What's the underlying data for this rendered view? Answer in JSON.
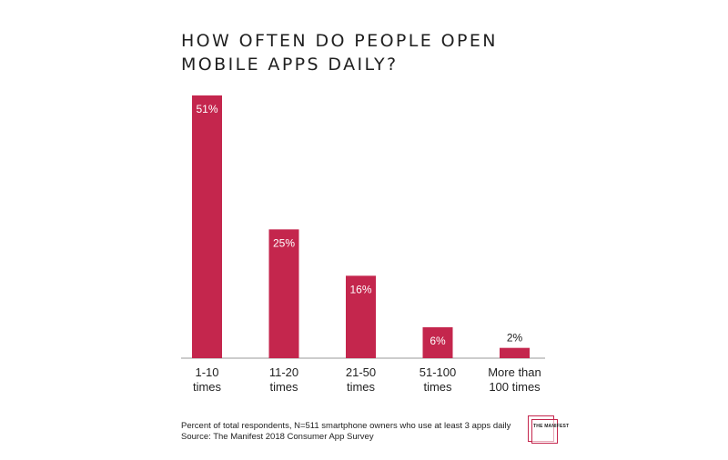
{
  "chart_data": {
    "type": "bar",
    "title": "HOW OFTEN DO PEOPLE OPEN MOBILE APPS DAILY?",
    "categories": [
      [
        "1-10",
        "times"
      ],
      [
        "11-20",
        "times"
      ],
      [
        "21-50",
        "times"
      ],
      [
        "51-100",
        "times"
      ],
      [
        "More than",
        "100 times"
      ]
    ],
    "values": [
      51,
      25,
      16,
      6,
      2
    ],
    "value_labels": [
      "51%",
      "25%",
      "16%",
      "6%",
      "2%"
    ],
    "unit": "%",
    "ylim": [
      0,
      51
    ],
    "grid": false,
    "bar_color": "#c4264d"
  },
  "footnote": {
    "line1": "Percent of total respondents, N=511 smartphone owners who use at least 3 apps daily",
    "line2": "Source: The Manifest 2018 Consumer App Survey"
  },
  "logo": {
    "text": "THE MANIFEST",
    "color": "#c4264d"
  }
}
